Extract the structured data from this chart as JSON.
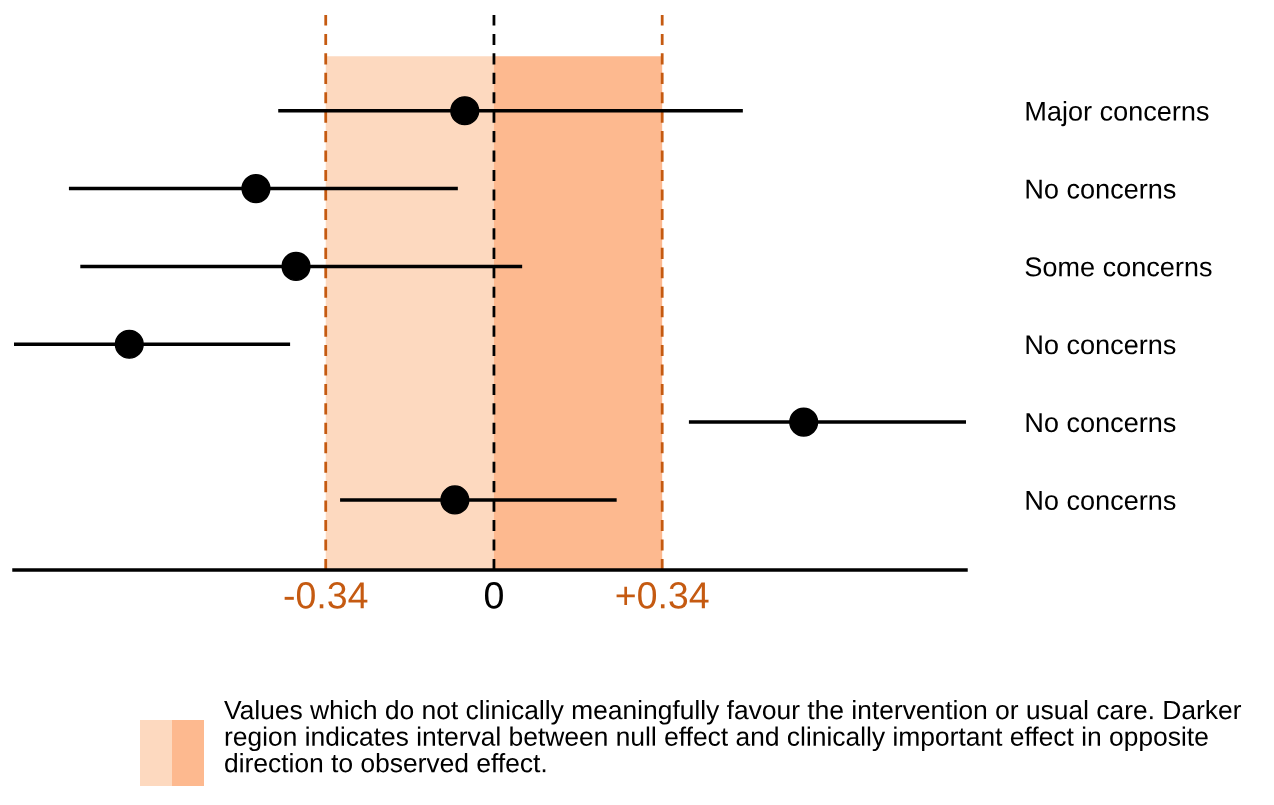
{
  "chart_data": {
    "type": "scatter",
    "orientation": "horizontal",
    "categories": [
      "Major concerns",
      "No concerns",
      "Some concerns",
      "No concerns",
      "No concerns",
      "No concerns"
    ],
    "values": [
      -0.059,
      -0.481,
      -0.4,
      -0.737,
      0.626,
      -0.079
    ],
    "errors": [
      [
        -0.436,
        0.503
      ],
      [
        -0.859,
        -0.073
      ],
      [
        -0.836,
        0.057
      ],
      [
        -0.97,
        -0.412
      ],
      [
        0.394,
        0.954
      ],
      [
        -0.311,
        0.248
      ]
    ],
    "color": "#000000",
    "marker": "circle",
    "xlim": [
      -0.97,
      0.954
    ],
    "xticks": [
      {
        "value": -0.34,
        "label": "-0.34"
      },
      0,
      {
        "value": 0.34,
        "label": "+0.34"
      }
    ],
    "ref_lines": [
      {
        "axis": "x",
        "value": -0.34,
        "color": "#c55a11",
        "line_style": "dashed"
      },
      {
        "axis": "x",
        "value": 0,
        "color": "#000000",
        "line_style": "dashed"
      },
      {
        "axis": "x",
        "value": 0.34,
        "color": "#c55a11",
        "line_style": "dashed"
      }
    ],
    "bands": [
      {
        "axis": "x",
        "from": -0.34,
        "to": 0,
        "color": "#fdd9bf"
      },
      {
        "axis": "x",
        "from": 0,
        "to": 0.34,
        "color": "#fdb98f"
      }
    ],
    "annotations": [
      "Values which do not clinically meaningfully favour the intervention or usual care. Darker region indicates interval between null effect and clinically important effect in opposite direction to observed effect."
    ],
    "grid": false
  }
}
